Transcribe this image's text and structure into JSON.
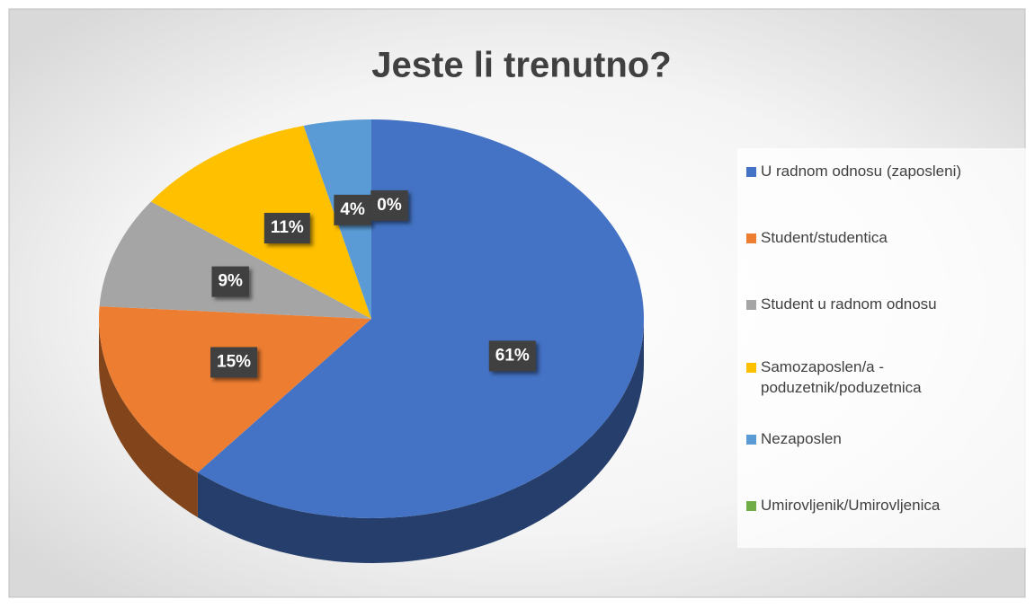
{
  "chart_data": {
    "type": "pie",
    "title": "Jeste li trenutno?",
    "categories": [
      "U radnom odnosu (zaposleni)",
      "Student/studentica",
      "Student u radnom odnosu",
      "Samozaposlen/a - poduzetnik/poduzetnica",
      "Nezaposlen",
      "Umirovljenik/Umirovljenica"
    ],
    "values": [
      61,
      15,
      9,
      11,
      4,
      0
    ],
    "value_labels": [
      "61%",
      "15%",
      "9%",
      "11%",
      "4%",
      "0%"
    ],
    "colors": [
      "#4472c4",
      "#ed7d31",
      "#a5a5a5",
      "#ffc000",
      "#5b9bd5",
      "#70ad47"
    ],
    "legend": "right"
  }
}
